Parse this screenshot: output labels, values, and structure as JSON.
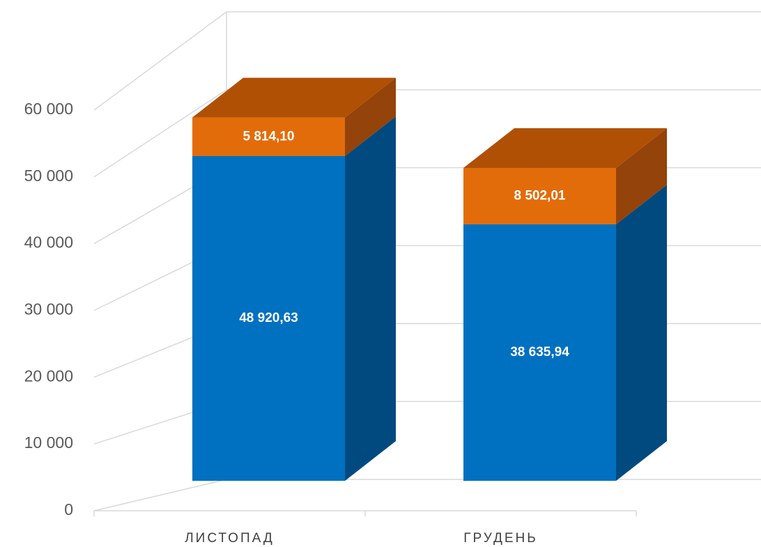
{
  "chart_data": {
    "type": "bar3d_stacked",
    "categories": [
      "ЛИСТОПАД",
      "ГРУДЕНЬ"
    ],
    "series": [
      {
        "color": "#0070c0",
        "side_color": "#004a80",
        "top_color": "#1a5f99",
        "values": [
          48920.63,
          38635.94
        ],
        "value_labels": [
          "48 920,63",
          "38 635,94"
        ]
      },
      {
        "color": "#e36c0a",
        "side_color": "#94430a",
        "top_color": "#b05004",
        "values": [
          5814.1,
          8502.01
        ],
        "value_labels": [
          "5 814,10",
          "8 502,01"
        ]
      }
    ],
    "ylim": [
      0,
      60000
    ],
    "yticks": [
      0,
      {
        "value": 10000,
        "label": "10 000"
      },
      {
        "value": 20000,
        "label": "20 000"
      },
      {
        "value": 30000,
        "label": "30 000"
      },
      {
        "value": 40000,
        "label": "40 000"
      },
      {
        "value": 50000,
        "label": "50 000"
      },
      {
        "value": 60000,
        "label": "60 000"
      }
    ],
    "grid": true
  }
}
